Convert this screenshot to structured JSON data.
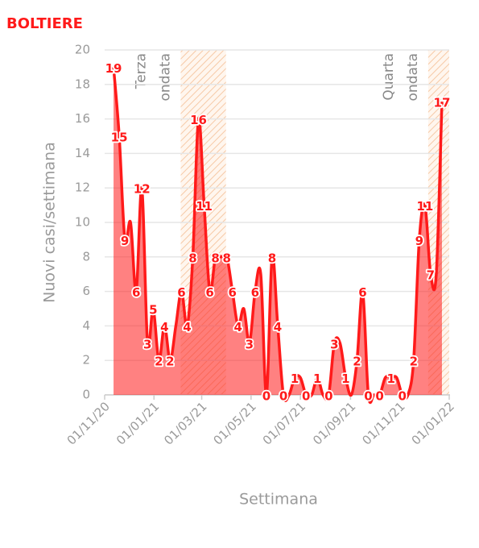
{
  "chart_data": {
    "type": "area",
    "title": "BOLTIERE",
    "y_label": "Nuovi casi/settimana",
    "x_label": "Settimana",
    "x": [
      "2020-11-12",
      "2020-11-19",
      "2020-11-26",
      "2020-12-03",
      "2020-12-10",
      "2020-12-17",
      "2020-12-24",
      "2020-12-31",
      "2021-01-07",
      "2021-01-14",
      "2021-01-21",
      "2021-01-28",
      "2021-02-04",
      "2021-02-11",
      "2021-02-18",
      "2021-02-25",
      "2021-03-04",
      "2021-03-11",
      "2021-03-18",
      "2021-03-25",
      "2021-04-01",
      "2021-04-08",
      "2021-04-15",
      "2021-04-22",
      "2021-04-29",
      "2021-05-06",
      "2021-05-13",
      "2021-05-20",
      "2021-05-27",
      "2021-06-03",
      "2021-06-10",
      "2021-06-17",
      "2021-06-24",
      "2021-07-01",
      "2021-07-08",
      "2021-07-15",
      "2021-07-22",
      "2021-07-29",
      "2021-08-05",
      "2021-08-12",
      "2021-08-19",
      "2021-08-26",
      "2021-09-02",
      "2021-09-09",
      "2021-09-16",
      "2021-09-23",
      "2021-09-30",
      "2021-10-07",
      "2021-10-14",
      "2021-10-21",
      "2021-10-28",
      "2021-11-04",
      "2021-11-11",
      "2021-11-18",
      "2021-11-25",
      "2021-12-02",
      "2021-12-09",
      "2021-12-16",
      "2021-12-23"
    ],
    "series": [
      {
        "name": "BOLTIERE",
        "color": "#ff1a1a",
        "values": [
          19,
          15,
          9,
          10,
          6,
          12,
          3,
          5,
          2,
          4,
          2,
          4,
          6,
          4,
          8,
          16,
          11,
          6,
          8,
          8,
          8,
          6,
          4,
          5,
          3,
          6,
          7,
          0,
          8,
          4,
          0,
          0,
          1,
          1,
          0,
          0,
          1,
          0,
          0,
          3,
          3,
          1,
          0,
          2,
          6,
          0,
          0,
          0,
          1,
          1,
          1,
          0,
          0,
          2,
          9,
          11,
          7,
          7,
          17
        ],
        "value_labels": [
          "19",
          "15",
          "9",
          null,
          "6",
          "12",
          "3",
          "5",
          "2",
          "4",
          "2",
          null,
          "6",
          "4",
          "8",
          "16",
          "11",
          "6",
          "8",
          null,
          "8",
          "6",
          "4",
          null,
          "3",
          "6",
          null,
          "0",
          "8",
          "4",
          "0",
          null,
          "1",
          null,
          "0",
          null,
          "1",
          null,
          "0",
          "3",
          null,
          "1",
          null,
          "2",
          "6",
          "0",
          null,
          "0",
          null,
          "1",
          null,
          "0",
          null,
          "2",
          "9",
          "11",
          "7",
          null,
          "17"
        ]
      }
    ],
    "xlim": [
      "2020-11-01",
      "2022-01-01"
    ],
    "xticks": [
      {
        "value": "2020-11-01",
        "label": "01/11/20"
      },
      {
        "value": "2021-01-01",
        "label": "01/01/21"
      },
      {
        "value": "2021-03-01",
        "label": "01/03/21"
      },
      {
        "value": "2021-05-01",
        "label": "01/05/21"
      },
      {
        "value": "2021-07-01",
        "label": "01/07/21"
      },
      {
        "value": "2021-09-01",
        "label": "01/09/21"
      },
      {
        "value": "2021-11-01",
        "label": "01/11/21"
      },
      {
        "value": "2022-01-01",
        "label": "01/01/22"
      }
    ],
    "ylim": [
      0,
      20
    ],
    "yticks": [
      0,
      2,
      4,
      6,
      8,
      10,
      12,
      14,
      16,
      18,
      20
    ],
    "grid": true,
    "bands": [
      {
        "start": "2021-02-03",
        "end": "2021-03-31",
        "label": [
          "Terza",
          "ondata"
        ]
      },
      {
        "start": "2021-12-06",
        "end": "2022-01-01",
        "label": [
          "Quarta",
          "ondata"
        ]
      }
    ]
  }
}
